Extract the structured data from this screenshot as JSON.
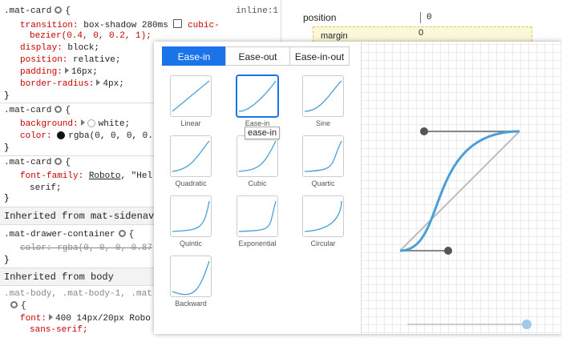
{
  "styles": {
    "rule1": {
      "selector": ".mat-card",
      "open": "{",
      "source": "inline:1",
      "transition": {
        "prop": "transition:",
        "value": "box-shadow 280ms",
        "value2": "cubic-",
        "wrap": "bezier(0.4, 0, 0.2, 1);"
      },
      "display": {
        "prop": "display:",
        "value": "block;"
      },
      "position": {
        "prop": "position:",
        "value": "relative;"
      },
      "padding": {
        "prop": "padding:",
        "value": "16px;"
      },
      "radius": {
        "prop": "border-radius:",
        "value": "4px;"
      },
      "close": "}"
    },
    "rule2": {
      "selector": ".mat-card",
      "open": "{",
      "background": {
        "prop": "background:",
        "value": "white;"
      },
      "color": {
        "prop": "color:",
        "value": "rgba(0, 0, 0, 0."
      },
      "close": "}"
    },
    "rule3": {
      "selector": ".mat-card",
      "open": "{",
      "font": {
        "prop": "font-family:",
        "link": "Roboto",
        "value": ", \"Hel",
        "wrap": "serif;"
      },
      "close": "}"
    },
    "inherited1": "Inherited from mat-sidenav-conta",
    "rule4": {
      "selector": ".mat-drawer-container",
      "open": "{",
      "decl": "color: rgba(0, 0, 0, 0.87",
      "close": "}"
    },
    "inherited2": "Inherited from body",
    "rule5": {
      "selector": ".mat-body, .mat-body-1, .mat",
      "open": "{",
      "font": {
        "prop": "font:",
        "value": "400 14px/20px Robo",
        "wrap": "sans-serif;"
      }
    }
  },
  "box_model": {
    "label": "position",
    "value": "0",
    "margin_label": "margin",
    "margin_value": "0"
  },
  "easing_editor": {
    "tabs": [
      "Ease-in",
      "Ease-out",
      "Ease-in-out"
    ],
    "presets": [
      "Linear",
      "Ease-in",
      "Sine",
      "Quadratic",
      "Cubic",
      "Quartic",
      "Quintic",
      "Exponential",
      "Circular",
      "Backward"
    ],
    "tooltip": "ease-in"
  }
}
